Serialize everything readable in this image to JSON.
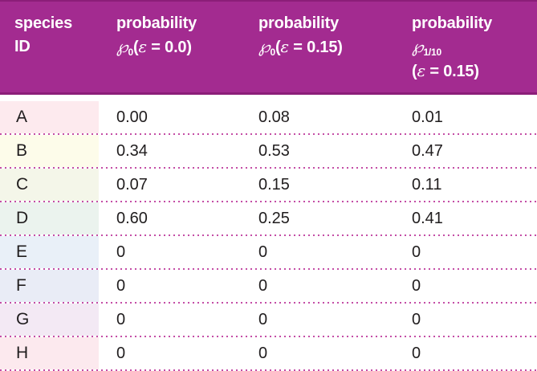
{
  "colors": {
    "header_bg": "#a32b90",
    "header_edge": "#8b1e78",
    "header_text": "#ffffff",
    "body_text": "#201d1e",
    "dotted_separator": "#c44da6",
    "row_tints": [
      "#fdeaee",
      "#fdfcea",
      "#f4f6e9",
      "#ebf3ee",
      "#e9f0f8",
      "#e9ecf6",
      "#f3e9f4",
      "#fce9ee"
    ]
  },
  "header": {
    "col1": {
      "line1": "species",
      "line2": "ID"
    },
    "col2": {
      "title": "probability",
      "symbol": "℘",
      "sub": "0",
      "open": "(",
      "epsilon": "ε",
      "rest": " = 0.0)"
    },
    "col3": {
      "title": "probability",
      "symbol": "℘",
      "sub": "0",
      "open": "(",
      "epsilon": "ε",
      "rest": " = 0.15)"
    },
    "col4": {
      "title": "probability",
      "symbol": "℘",
      "sub": "1/10",
      "open": "(",
      "epsilon": "ε",
      "rest": " = 0.15)"
    }
  },
  "rows": [
    {
      "id": "A",
      "tint": "#fdeaee",
      "values": [
        "0.00",
        "0.08",
        "0.01"
      ]
    },
    {
      "id": "B",
      "tint": "#fdfcea",
      "values": [
        "0.34",
        "0.53",
        "0.47"
      ]
    },
    {
      "id": "C",
      "tint": "#f4f6e9",
      "values": [
        "0.07",
        "0.15",
        "0.11"
      ]
    },
    {
      "id": "D",
      "tint": "#ebf3ee",
      "values": [
        "0.60",
        "0.25",
        "0.41"
      ]
    },
    {
      "id": "E",
      "tint": "#e9f0f8",
      "values": [
        "0",
        "0",
        "0"
      ]
    },
    {
      "id": "F",
      "tint": "#e9ecf6",
      "values": [
        "0",
        "0",
        "0"
      ]
    },
    {
      "id": "G",
      "tint": "#f3e9f4",
      "values": [
        "0",
        "0",
        "0"
      ]
    },
    {
      "id": "H",
      "tint": "#fce9ee",
      "values": [
        "0",
        "0",
        "0"
      ]
    }
  ],
  "chart_data": {
    "type": "table",
    "columns": [
      "species ID",
      "probability ℘0(ε = 0.0)",
      "probability ℘0(ε = 0.15)",
      "probability ℘1/10 (ε = 0.15)"
    ],
    "rows": [
      [
        "A",
        "0.00",
        "0.08",
        "0.01"
      ],
      [
        "B",
        "0.34",
        "0.53",
        "0.47"
      ],
      [
        "C",
        "0.07",
        "0.15",
        "0.11"
      ],
      [
        "D",
        "0.60",
        "0.25",
        "0.41"
      ],
      [
        "E",
        "0",
        "0",
        "0"
      ],
      [
        "F",
        "0",
        "0",
        "0"
      ],
      [
        "G",
        "0",
        "0",
        "0"
      ],
      [
        "H",
        "0",
        "0",
        "0"
      ]
    ]
  }
}
